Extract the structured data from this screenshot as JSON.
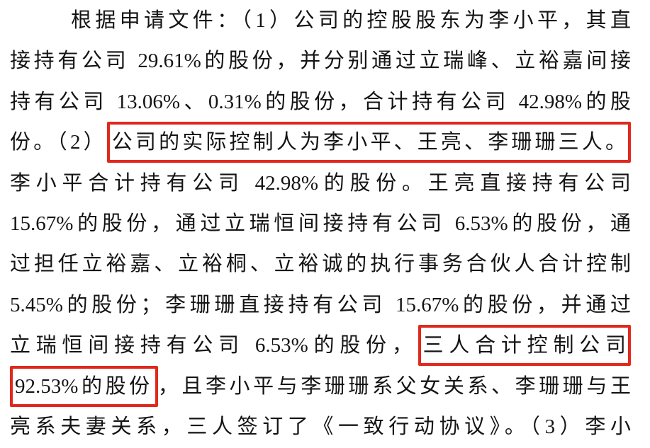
{
  "page": {
    "background_color": "#ffffff",
    "text_color": "#141414",
    "highlight_box_color": "#e0291d"
  },
  "document": {
    "language": "zh-CN",
    "lines": [
      {
        "indent": true,
        "segments": [
          {
            "text": "根据申请文件：（1）公司的控股股东为李小平，其直",
            "boxed": false
          }
        ]
      },
      {
        "indent": false,
        "segments": [
          {
            "text": "接持有公司 29.61%的股份，并分别通过立瑞峰、立裕嘉间接",
            "boxed": false
          }
        ]
      },
      {
        "indent": false,
        "segments": [
          {
            "text": "持有公司 13.06%、0.31%的股份，合计持有公司 42.98%的股",
            "boxed": false
          }
        ]
      },
      {
        "indent": false,
        "segments": [
          {
            "text": "份。（2）",
            "boxed": false
          },
          {
            "text": "公司的实际控制人为李小平、王亮、李珊珊三人。",
            "boxed": true
          }
        ]
      },
      {
        "indent": false,
        "segments": [
          {
            "text": "李小平合计持有公司 42.98%的股份。王亮直接持有公司",
            "boxed": false
          }
        ]
      },
      {
        "indent": false,
        "segments": [
          {
            "text": "15.67%的股份，通过立瑞恒间接持有公司 6.53%的股份，通",
            "boxed": false
          }
        ]
      },
      {
        "indent": false,
        "segments": [
          {
            "text": "过担任立裕嘉、立裕桐、立裕诚的执行事务合伙人合计控制",
            "boxed": false
          }
        ]
      },
      {
        "indent": false,
        "segments": [
          {
            "text": "5.45%的股份；李珊珊直接持有公司 15.67%的股份，并通过",
            "boxed": false
          }
        ]
      },
      {
        "indent": false,
        "segments": [
          {
            "text": "立瑞恒间接持有公司 6.53%的股份，",
            "boxed": false
          },
          {
            "text": "三人合计控制公司",
            "boxed": true
          }
        ]
      },
      {
        "indent": false,
        "segments": [
          {
            "text": "92.53%的股份",
            "boxed": true
          },
          {
            "text": "，且李小平与李珊珊系父女关系、李珊珊与王",
            "boxed": false
          }
        ]
      },
      {
        "indent": false,
        "segments": [
          {
            "text": "亮系夫妻关系，三人签订了《一致行动协议》。（3）李小",
            "boxed": false
          }
        ]
      }
    ]
  }
}
